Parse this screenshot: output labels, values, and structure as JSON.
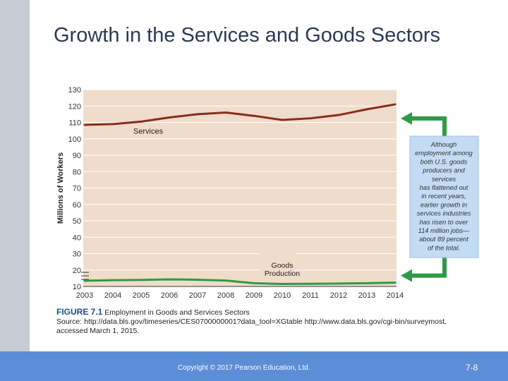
{
  "slide": {
    "title": "Growth in the Services and Goods Sectors",
    "footer": "Copyright © 2017 Pearson Education, Ltd.",
    "page": "7-8"
  },
  "figure": {
    "number": "FIGURE 7.1",
    "title": "Employment in Goods and Services Sectors",
    "source_line1": "Source: http://data.bls.gov/timeseries/CES0700000001?data_tool=XGtable http://www.data.bls.gov/cgi-bin/surveymost,",
    "source_line2": "accessed March 1, 2015."
  },
  "chart_data": {
    "type": "line",
    "title": "",
    "xlabel": "",
    "ylabel": "Millions of Workers",
    "x": [
      2003,
      2004,
      2005,
      2006,
      2007,
      2008,
      2009,
      2010,
      2011,
      2012,
      2013,
      2014
    ],
    "ylim": [
      10,
      130
    ],
    "yticks": [
      10,
      20,
      30,
      40,
      50,
      60,
      70,
      80,
      90,
      100,
      110,
      120,
      130
    ],
    "grid": true,
    "series": [
      {
        "name": "Services",
        "values": [
          108.5,
          109,
          110.5,
          113,
          115,
          116,
          114,
          111.5,
          112.5,
          114.5,
          118,
          121
        ],
        "color": "#8b2c1c"
      },
      {
        "name": "Goods Production",
        "values": [
          13.5,
          13.8,
          14,
          14.3,
          14.1,
          13.6,
          12,
          11.5,
          11.6,
          11.8,
          12,
          12.3
        ],
        "color": "#2f9a45"
      }
    ],
    "series_labels": [
      "Services",
      "Goods",
      "Production"
    ],
    "annotation": [
      "Although",
      "employment among",
      "both U.S. goods",
      "producers and",
      "services",
      "has flattened out",
      "in recent years,",
      "earlier growth in",
      "services industries",
      "has risen to over",
      "114 million jobs—",
      "about 89 percent",
      "of the total."
    ],
    "colors": {
      "plot_bg": "#efdccb",
      "annotation_bg": "#c3dcf3",
      "arrow": "#2f9a45"
    }
  }
}
